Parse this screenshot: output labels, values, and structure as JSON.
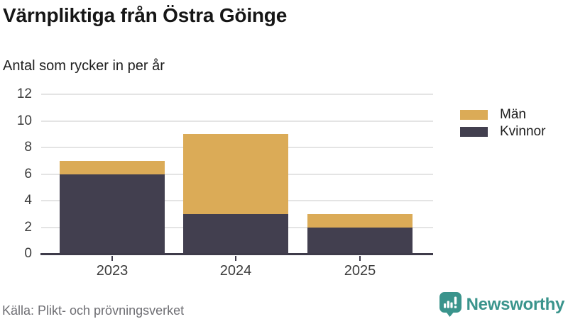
{
  "header": {
    "title": "Värnpliktiga från Östra Göinge",
    "subtitle": "Antal som rycker in per år"
  },
  "chart_data": {
    "type": "bar",
    "stacked": true,
    "title": "Värnpliktiga från Östra Göinge",
    "subtitle": "Antal som rycker in per år",
    "xlabel": "",
    "ylabel": "",
    "categories": [
      "2023",
      "2024",
      "2025"
    ],
    "series": [
      {
        "name": "Män",
        "color": "#DBAB57",
        "values": [
          1,
          6,
          1
        ]
      },
      {
        "name": "Kvinnor",
        "color": "#423F4F",
        "values": [
          6,
          3,
          2
        ]
      }
    ],
    "stack_totals": [
      7,
      9,
      3
    ],
    "ylim": [
      0,
      12
    ],
    "yticks": [
      0,
      2,
      4,
      6,
      8,
      10,
      12
    ],
    "grid": "horizontal-only",
    "legend_position": "top-right"
  },
  "footer": {
    "source": "Källa: Plikt- och prövningsverket",
    "brand": "Newsworthy"
  },
  "colors": {
    "men": "#DBAB57",
    "women": "#423F4F",
    "axis": "#3E3B4A",
    "gridline": "#E4E4E4",
    "tick_label": "#3C3C3C",
    "source_text": "#6E6E73",
    "brand_teal": "#3A948C"
  }
}
